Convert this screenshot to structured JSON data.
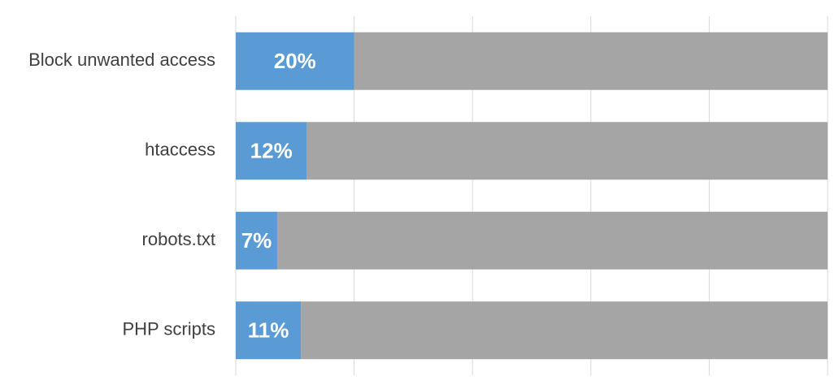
{
  "chart_data": {
    "type": "stacked-bar-horizontal",
    "categories": [
      "Block unwanted access",
      "htaccess",
      "robots.txt",
      "PHP scripts"
    ],
    "series": [
      {
        "color": "#5b9bd5",
        "values": [
          20,
          12,
          7,
          11
        ],
        "value_labels": [
          "20%",
          "12%",
          "7%",
          "11%"
        ]
      },
      {
        "color": "#a5a5a5",
        "values": [
          80,
          88,
          93,
          89
        ]
      }
    ],
    "xlim": [
      0,
      100
    ],
    "xticks": [
      0,
      20,
      40,
      60,
      80,
      100
    ],
    "grid": true
  }
}
